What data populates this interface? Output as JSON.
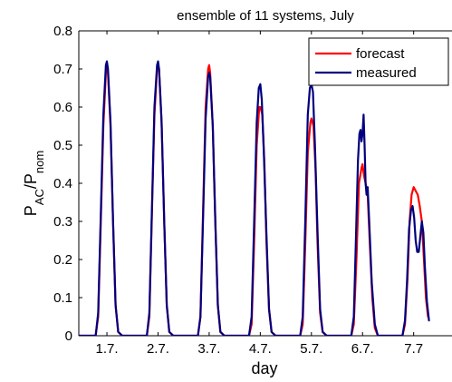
{
  "chart_data": {
    "type": "line",
    "title": "ensemble of 11 systems, July",
    "xlabel": "day",
    "ylabel": {
      "base1": "P",
      "sub1": "AC",
      "sep": "/P",
      "sub2": "nom"
    },
    "x_unit": "day of July",
    "xlim": [
      0.45,
      7.75
    ],
    "ylim": [
      0,
      0.8
    ],
    "x_tick_values": [
      1,
      2,
      3,
      4,
      5,
      6,
      7
    ],
    "x_tick_labels": [
      "1.7.",
      "2.7.",
      "3.7.",
      "4.7.",
      "5.7.",
      "6.7.",
      "7.7"
    ],
    "y_tick_values": [
      0,
      0.1,
      0.2,
      0.3,
      0.4,
      0.5,
      0.6,
      0.7,
      0.8
    ],
    "y_tick_labels": [
      "0",
      "0.1",
      "0.2",
      "0.3",
      "0.4",
      "0.5",
      "0.6",
      "0.7",
      "0.8"
    ],
    "grid": false,
    "legend_position": "top-right",
    "series": [
      {
        "name": "forecast",
        "color": "#ff0000",
        "x": [
          0.45,
          0.78,
          0.83,
          0.88,
          0.93,
          0.98,
          1.0,
          1.02,
          1.07,
          1.12,
          1.17,
          1.22,
          1.3,
          1.78,
          1.83,
          1.88,
          1.93,
          1.98,
          2.0,
          2.02,
          2.07,
          2.12,
          2.17,
          2.22,
          2.3,
          2.78,
          2.83,
          2.88,
          2.93,
          2.98,
          3.0,
          3.02,
          3.07,
          3.12,
          3.17,
          3.22,
          3.3,
          3.78,
          3.83,
          3.88,
          3.93,
          3.98,
          4.0,
          4.04,
          4.08,
          4.12,
          4.17,
          4.22,
          4.3,
          4.78,
          4.83,
          4.88,
          4.93,
          4.98,
          5.0,
          5.04,
          5.08,
          5.12,
          5.17,
          5.22,
          5.3,
          5.78,
          5.83,
          5.88,
          5.93,
          5.98,
          6.0,
          6.03,
          6.06,
          6.1,
          6.14,
          6.19,
          6.24,
          6.3,
          6.78,
          6.83,
          6.88,
          6.92,
          6.96,
          7.0,
          7.04,
          7.08,
          7.12,
          7.16,
          7.2,
          7.24,
          7.28
        ],
        "y": [
          0,
          0,
          0.05,
          0.3,
          0.55,
          0.69,
          0.7,
          0.69,
          0.55,
          0.3,
          0.08,
          0.01,
          0,
          0,
          0.05,
          0.32,
          0.58,
          0.7,
          0.71,
          0.7,
          0.56,
          0.3,
          0.08,
          0.01,
          0,
          0,
          0.05,
          0.32,
          0.6,
          0.7,
          0.71,
          0.69,
          0.55,
          0.3,
          0.08,
          0.01,
          0,
          0,
          0.03,
          0.25,
          0.5,
          0.6,
          0.6,
          0.58,
          0.45,
          0.25,
          0.07,
          0.01,
          0,
          0,
          0.03,
          0.24,
          0.48,
          0.56,
          0.57,
          0.55,
          0.44,
          0.24,
          0.06,
          0.01,
          0,
          0,
          0.03,
          0.2,
          0.4,
          0.44,
          0.45,
          0.42,
          0.4,
          0.37,
          0.25,
          0.1,
          0.02,
          0,
          0,
          0.03,
          0.15,
          0.3,
          0.37,
          0.39,
          0.38,
          0.37,
          0.34,
          0.3,
          0.2,
          0.1,
          0.05
        ]
      },
      {
        "name": "measured",
        "color": "#00007f",
        "x": [
          0.45,
          0.78,
          0.83,
          0.88,
          0.93,
          0.98,
          1.0,
          1.02,
          1.07,
          1.12,
          1.17,
          1.22,
          1.3,
          1.78,
          1.83,
          1.88,
          1.93,
          1.98,
          2.0,
          2.02,
          2.07,
          2.12,
          2.17,
          2.22,
          2.3,
          2.78,
          2.83,
          2.88,
          2.93,
          2.98,
          3.0,
          3.02,
          3.07,
          3.12,
          3.17,
          3.22,
          3.3,
          3.78,
          3.83,
          3.88,
          3.93,
          3.97,
          4.0,
          4.03,
          4.07,
          4.12,
          4.17,
          4.22,
          4.3,
          4.78,
          4.83,
          4.88,
          4.93,
          4.97,
          5.0,
          5.03,
          5.07,
          5.12,
          5.17,
          5.22,
          5.3,
          5.78,
          5.83,
          5.87,
          5.91,
          5.94,
          5.96,
          5.98,
          6.0,
          6.02,
          6.04,
          6.06,
          6.08,
          6.1,
          6.13,
          6.18,
          6.24,
          6.3,
          6.78,
          6.83,
          6.87,
          6.91,
          6.95,
          6.98,
          7.01,
          7.04,
          7.07,
          7.1,
          7.13,
          7.16,
          7.19,
          7.22,
          7.26,
          7.3
        ],
        "y": [
          0,
          0,
          0.06,
          0.32,
          0.58,
          0.71,
          0.72,
          0.7,
          0.56,
          0.3,
          0.08,
          0.01,
          0,
          0,
          0.06,
          0.33,
          0.6,
          0.71,
          0.72,
          0.7,
          0.56,
          0.3,
          0.08,
          0.01,
          0,
          0,
          0.05,
          0.3,
          0.57,
          0.68,
          0.69,
          0.68,
          0.55,
          0.3,
          0.08,
          0.01,
          0,
          0,
          0.05,
          0.3,
          0.56,
          0.65,
          0.66,
          0.62,
          0.48,
          0.27,
          0.07,
          0.01,
          0,
          0,
          0.05,
          0.3,
          0.58,
          0.65,
          0.66,
          0.64,
          0.5,
          0.27,
          0.07,
          0.01,
          0,
          0,
          0.05,
          0.25,
          0.46,
          0.53,
          0.54,
          0.51,
          0.53,
          0.58,
          0.5,
          0.4,
          0.37,
          0.39,
          0.3,
          0.14,
          0.03,
          0,
          0,
          0.04,
          0.14,
          0.28,
          0.33,
          0.34,
          0.31,
          0.25,
          0.22,
          0.22,
          0.26,
          0.3,
          0.27,
          0.18,
          0.09,
          0.04
        ]
      }
    ]
  }
}
